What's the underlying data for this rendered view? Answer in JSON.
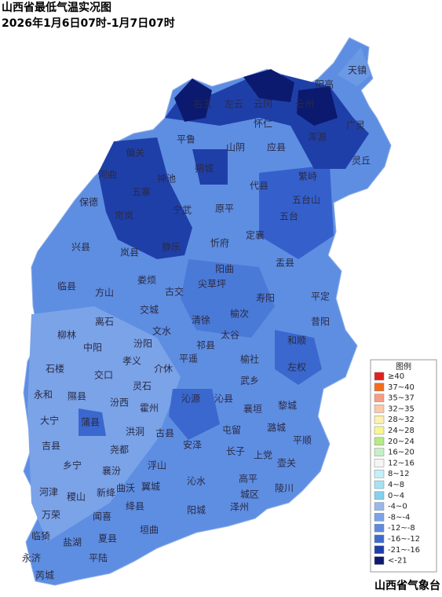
{
  "header": {
    "title": "山西省最低气温实况图",
    "subtitle": "2026年1月6日07时-1月7日07时"
  },
  "counties": [
    "天镇",
    "阳高",
    "右玉",
    "左云",
    "云冈",
    "云州",
    "怀仁",
    "广灵",
    "平鲁",
    "山阴",
    "应县",
    "浑源",
    "灵丘",
    "偏关",
    "河曲",
    "神池",
    "朔城",
    "繁峙",
    "代县",
    "五台山",
    "保德",
    "五寨",
    "宁武",
    "原平",
    "五台",
    "岢岚",
    "静乐",
    "忻府",
    "定襄",
    "兴县",
    "岚县",
    "盂县",
    "阳曲",
    "临县",
    "方山",
    "娄烦",
    "古交",
    "尖草坪",
    "寿阳",
    "平定",
    "清徐",
    "离石",
    "交城",
    "文水",
    "榆次",
    "昔阳",
    "柳林",
    "中阳",
    "汾阳",
    "祁县",
    "太谷",
    "和顺",
    "孝义",
    "平遥",
    "榆社",
    "石楼",
    "交口",
    "介休",
    "左权",
    "灵石",
    "武乡",
    "永和",
    "隰县",
    "汾西",
    "沁源",
    "沁县",
    "黎城",
    "大宁",
    "蒲县",
    "霍州",
    "襄垣",
    "洪洞",
    "古县",
    "屯留",
    "潞城",
    "平顺",
    "吉县",
    "尧都",
    "安泽",
    "长子",
    "上党",
    "壶关",
    "乡宁",
    "襄汾",
    "浮山",
    "高平",
    "陵川",
    "河津",
    "稷山",
    "新绛",
    "曲沃",
    "翼城",
    "沁水",
    "泽州",
    "城区",
    "万荣",
    "闻喜",
    "绛县",
    "阳城",
    "临猗",
    "盐湖",
    "夏县",
    "垣曲",
    "永济",
    "平陆",
    "芮城"
  ],
  "legend": {
    "title": "图例",
    "items": [
      {
        "label": "≥40",
        "color": "#e0201b"
      },
      {
        "label": "37~40",
        "color": "#f46d1a"
      },
      {
        "label": "35~37",
        "color": "#f79e82"
      },
      {
        "label": "32~35",
        "color": "#fcc9a8"
      },
      {
        "label": "28~32",
        "color": "#fdf1b0"
      },
      {
        "label": "24~28",
        "color": "#f7f792"
      },
      {
        "label": "20~24",
        "color": "#b7e985"
      },
      {
        "label": "16~20",
        "color": "#c6f0c6"
      },
      {
        "label": "12~16",
        "color": "#f5f5f5"
      },
      {
        "label": "8~12",
        "color": "#c4f0f8"
      },
      {
        "label": "4~8",
        "color": "#a7e2f3"
      },
      {
        "label": "0~4",
        "color": "#86d0ef"
      },
      {
        "label": "-4~0",
        "color": "#97b9ea"
      },
      {
        "label": "-8~-4",
        "color": "#7ba3e6"
      },
      {
        "label": "-12~-8",
        "color": "#5d8be0"
      },
      {
        "label": "-16~-12",
        "color": "#3c6bd2"
      },
      {
        "label": "-21~-16",
        "color": "#1f3fa8"
      },
      {
        "label": "<-21",
        "color": "#0b1a6e"
      }
    ]
  },
  "footer": "山西省气象台"
}
